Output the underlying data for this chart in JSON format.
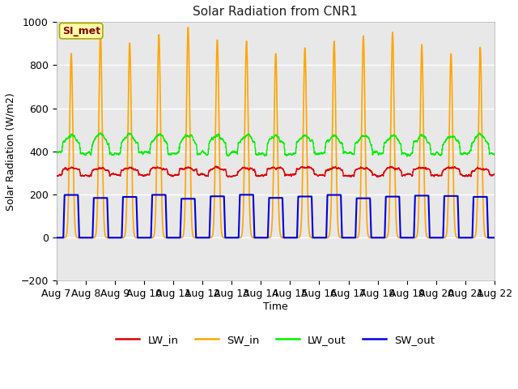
{
  "title": "Solar Radiation from CNR1",
  "xlabel": "Time",
  "ylabel": "Solar Radiation (W/m2)",
  "ylim": [
    -200,
    1000
  ],
  "fig_bg": "#ffffff",
  "plot_bg": "#e8e8e8",
  "grid_color": "#ffffff",
  "colors": {
    "LW_in": "#dd0000",
    "SW_in": "#ffa500",
    "LW_out": "#00ee00",
    "SW_out": "#0000dd"
  },
  "linewidths": {
    "LW_in": 1.0,
    "SW_in": 1.2,
    "LW_out": 1.0,
    "SW_out": 1.5
  },
  "annotation_text": "SI_met",
  "annotation_color": "#880000",
  "annotation_bg": "#ffffaa",
  "annotation_border": "#aaaa00",
  "n_days": 15,
  "pts_per_day": 288,
  "x_tick_labels": [
    "Aug 7",
    "Aug 8",
    "Aug 9",
    "Aug 10",
    "Aug 11",
    "Aug 12",
    "Aug 13",
    "Aug 14",
    "Aug 15",
    "Aug 16",
    "Aug 17",
    "Aug 18",
    "Aug 19",
    "Aug 20",
    "Aug 21",
    "Aug 22"
  ]
}
